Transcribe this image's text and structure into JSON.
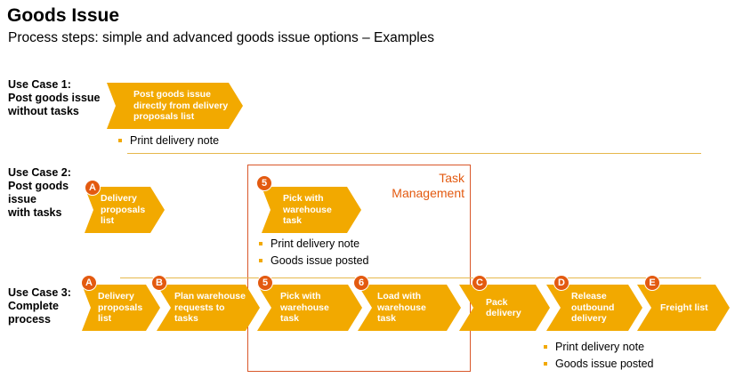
{
  "title": "Goods Issue",
  "subtitle": "Process steps: simple and advanced goods issue options – Examples",
  "colors": {
    "step_fill": "#f2a900",
    "badge": "#e35a10",
    "task_box": "#d9572a",
    "divider": "#e6b84c"
  },
  "task_management": {
    "line1": "Task",
    "line2": "Management"
  },
  "use_case_1": {
    "label": [
      "Use Case 1:",
      "Post goods issue",
      "without tasks"
    ],
    "steps": [
      {
        "lines": [
          "Post goods issue",
          "directly from delivery",
          "proposals list"
        ]
      }
    ],
    "notes": [
      "Print delivery note"
    ]
  },
  "use_case_2": {
    "label": [
      "Use Case 2:",
      "Post goods",
      "issue",
      "with tasks"
    ],
    "steps": [
      {
        "badge": "A",
        "lines": [
          "Delivery",
          "proposals",
          "list"
        ]
      },
      {
        "badge": "5",
        "lines": [
          "Pick with",
          "warehouse",
          "task"
        ]
      }
    ],
    "notes": [
      "Print delivery note",
      "Goods issue posted"
    ]
  },
  "use_case_3": {
    "label": [
      "Use Case 3:",
      "Complete",
      "process"
    ],
    "steps": [
      {
        "badge": "A",
        "lines": [
          "Delivery",
          "proposals",
          "list"
        ]
      },
      {
        "badge": "B",
        "lines": [
          "Plan warehouse",
          "requests to",
          "tasks"
        ]
      },
      {
        "badge": "5",
        "lines": [
          "Pick with",
          "warehouse",
          "task"
        ]
      },
      {
        "badge": "6",
        "lines": [
          "Load with",
          "warehouse",
          "task"
        ]
      },
      {
        "badge": "C",
        "lines": [
          "Pack",
          "delivery"
        ]
      },
      {
        "badge": "D",
        "lines": [
          "Release",
          "outbound",
          "delivery"
        ]
      },
      {
        "badge": "E",
        "lines": [
          "Freight list"
        ]
      }
    ],
    "notes": [
      "Print delivery note",
      "Goods issue posted"
    ]
  }
}
